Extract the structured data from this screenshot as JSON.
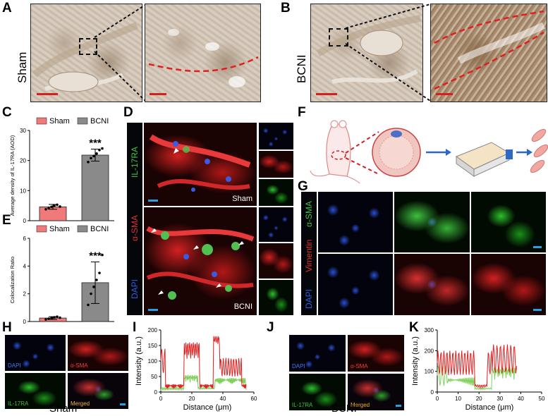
{
  "panel_labels": {
    "a": "A",
    "b": "B",
    "c": "C",
    "d": "D",
    "e": "E",
    "f": "F",
    "g": "G",
    "h": "H",
    "i": "I",
    "j": "J",
    "k": "K"
  },
  "groups": {
    "sham": "Sham",
    "bcni": "BCNI"
  },
  "fluor_labels": {
    "il17ra": "IL-17RA",
    "asma": "α-SMA",
    "dapi": "DAPI",
    "vimentin": "Vimentin",
    "merged": "Merged"
  },
  "colors": {
    "red": "#e03030",
    "green": "#40c040",
    "blue": "#2a5ee0",
    "sham_bar": "#f07a7a",
    "bcni_bar": "#8a8a8a",
    "dash_red": "#e02020"
  },
  "chart_data": [
    {
      "id": "C",
      "type": "bar",
      "categories": [
        "Sham",
        "BCNI"
      ],
      "values": [
        4.6,
        21.8
      ],
      "errors": [
        0.8,
        2.0
      ],
      "points": [
        [
          3.8,
          4.2,
          4.6,
          5.0,
          5.3,
          4.7
        ],
        [
          19.5,
          20.8,
          21.5,
          22.3,
          23.5,
          24.0
        ]
      ],
      "legend": [
        "Sham",
        "BCNI"
      ],
      "ylabel": "Average density of IL-17RA (AOD)",
      "ylim": [
        0,
        30
      ],
      "yticks": [
        0,
        10,
        20,
        30
      ],
      "annotation": "***"
    },
    {
      "id": "E",
      "type": "bar",
      "categories": [
        "Sham",
        "BCNI"
      ],
      "values": [
        0.25,
        2.8
      ],
      "errors": [
        0.1,
        1.5
      ],
      "points": [
        [
          0.15,
          0.2,
          0.25,
          0.3,
          0.35,
          0.28
        ],
        [
          1.2,
          2.0,
          2.5,
          3.0,
          3.5,
          4.8
        ]
      ],
      "legend": [
        "Sham",
        "BCNI"
      ],
      "ylabel": "Colocalization Ratio",
      "ylim": [
        0,
        6
      ],
      "yticks": [
        0,
        2,
        4,
        6
      ],
      "annotation": "***"
    },
    {
      "id": "I",
      "type": "line",
      "xlabel": "Distance (μm)",
      "ylabel": "Intensity (a.u.)",
      "xlim": [
        0,
        60
      ],
      "ylim": [
        0,
        200
      ],
      "xticks": [
        0,
        20,
        40,
        60
      ],
      "yticks": [
        0,
        50,
        100,
        150,
        200
      ]
    },
    {
      "id": "K",
      "type": "line",
      "xlabel": "Distance (μm)",
      "ylabel": "Intensity (a.u.)",
      "xlim": [
        0,
        50
      ],
      "ylim": [
        0,
        300
      ],
      "xticks": [
        0,
        10,
        20,
        30,
        40,
        50
      ],
      "yticks": [
        0,
        100,
        200,
        300
      ]
    }
  ]
}
